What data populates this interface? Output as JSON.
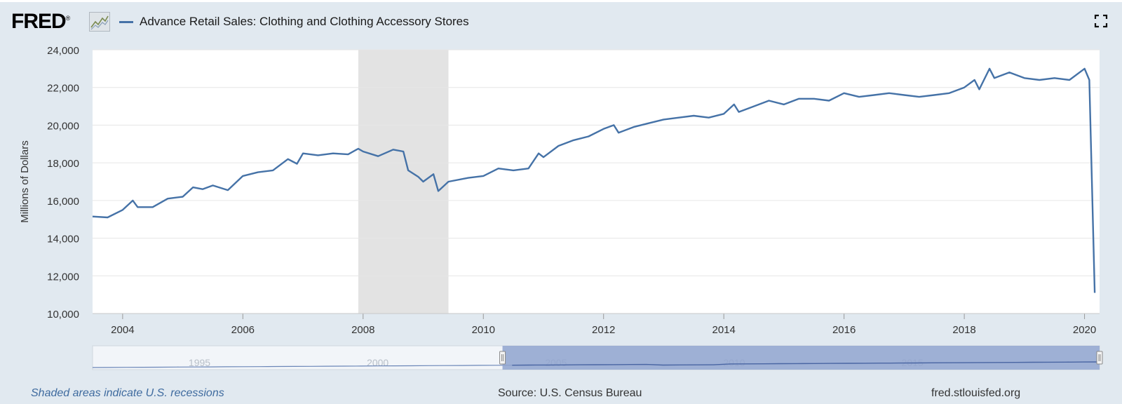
{
  "header": {
    "logo_text": "FRED",
    "logo_mark": "®",
    "logo_icon": "graph-line-icon",
    "fullscreen_icon": "fullscreen-icon"
  },
  "footer": {
    "recessions_note": "Shaded areas indicate U.S. recessions",
    "source": "Source: U.S. Census Bureau",
    "site": "fred.stlouisfed.org"
  },
  "colors": {
    "series": "#4572a7",
    "recession": "#e3e3e3",
    "background": "#e1e9f0",
    "navigator_fill": "#8fa3cf"
  },
  "chart_data": {
    "type": "line",
    "legend": "Advance Retail Sales: Clothing and Clothing Accessory Stores",
    "ylabel": "Millions of Dollars",
    "xlabel": "",
    "ylim": [
      10000,
      24000
    ],
    "xlim": [
      2003.5,
      2020.25
    ],
    "y_ticks": [
      "10,000",
      "12,000",
      "14,000",
      "16,000",
      "18,000",
      "20,000",
      "22,000",
      "24,000"
    ],
    "x_ticks": [
      "2004",
      "2006",
      "2008",
      "2010",
      "2012",
      "2014",
      "2016",
      "2018",
      "2020"
    ],
    "grid": true,
    "recessions": [
      [
        2007.92,
        2009.42
      ]
    ],
    "series": [
      {
        "x": [
          2003.5,
          2003.75,
          2004.0,
          2004.17,
          2004.25,
          2004.5,
          2004.75,
          2005.0,
          2005.17,
          2005.33,
          2005.5,
          2005.75,
          2006.0,
          2006.25,
          2006.5,
          2006.75,
          2006.9,
          2007.0,
          2007.25,
          2007.5,
          2007.75,
          2007.92,
          2008.0,
          2008.25,
          2008.5,
          2008.67,
          2008.75,
          2008.92,
          2009.0,
          2009.17,
          2009.25,
          2009.42,
          2009.75,
          2010.0,
          2010.25,
          2010.5,
          2010.75,
          2010.92,
          2011.0,
          2011.25,
          2011.5,
          2011.75,
          2012.0,
          2012.17,
          2012.25,
          2012.5,
          2012.75,
          2013.0,
          2013.25,
          2013.5,
          2013.75,
          2014.0,
          2014.17,
          2014.25,
          2014.5,
          2014.75,
          2015.0,
          2015.25,
          2015.5,
          2015.75,
          2016.0,
          2016.25,
          2016.5,
          2016.75,
          2017.0,
          2017.25,
          2017.5,
          2017.75,
          2018.0,
          2018.17,
          2018.25,
          2018.42,
          2018.5,
          2018.75,
          2019.0,
          2019.25,
          2019.5,
          2019.75,
          2020.0,
          2020.08,
          2020.17
        ],
        "y": [
          15150,
          15100,
          15500,
          16000,
          15650,
          15650,
          16100,
          16200,
          16700,
          16600,
          16800,
          16550,
          17300,
          17500,
          17600,
          18200,
          17950,
          18500,
          18400,
          18500,
          18450,
          18750,
          18600,
          18350,
          18700,
          18600,
          17600,
          17250,
          17000,
          17400,
          16500,
          17000,
          17200,
          17300,
          17700,
          17600,
          17700,
          18500,
          18300,
          18900,
          19200,
          19400,
          19800,
          20000,
          19600,
          19900,
          20100,
          20300,
          20400,
          20500,
          20400,
          20600,
          21100,
          20700,
          21000,
          21300,
          21100,
          21400,
          21400,
          21300,
          21700,
          21500,
          21600,
          21700,
          21600,
          21500,
          21600,
          21700,
          22000,
          22400,
          21900,
          23000,
          22500,
          22800,
          22500,
          22400,
          22500,
          22400,
          23000,
          22400,
          11100
        ]
      }
    ],
    "navigator": {
      "x_ticks": [
        "1995",
        "2000",
        "2005",
        "2010",
        "2015"
      ],
      "x_tick_years": [
        1995,
        2000,
        2005,
        2010,
        2015
      ],
      "xlim": [
        1992.0,
        2020.25
      ],
      "selected": [
        2003.5,
        2020.25
      ]
    }
  }
}
